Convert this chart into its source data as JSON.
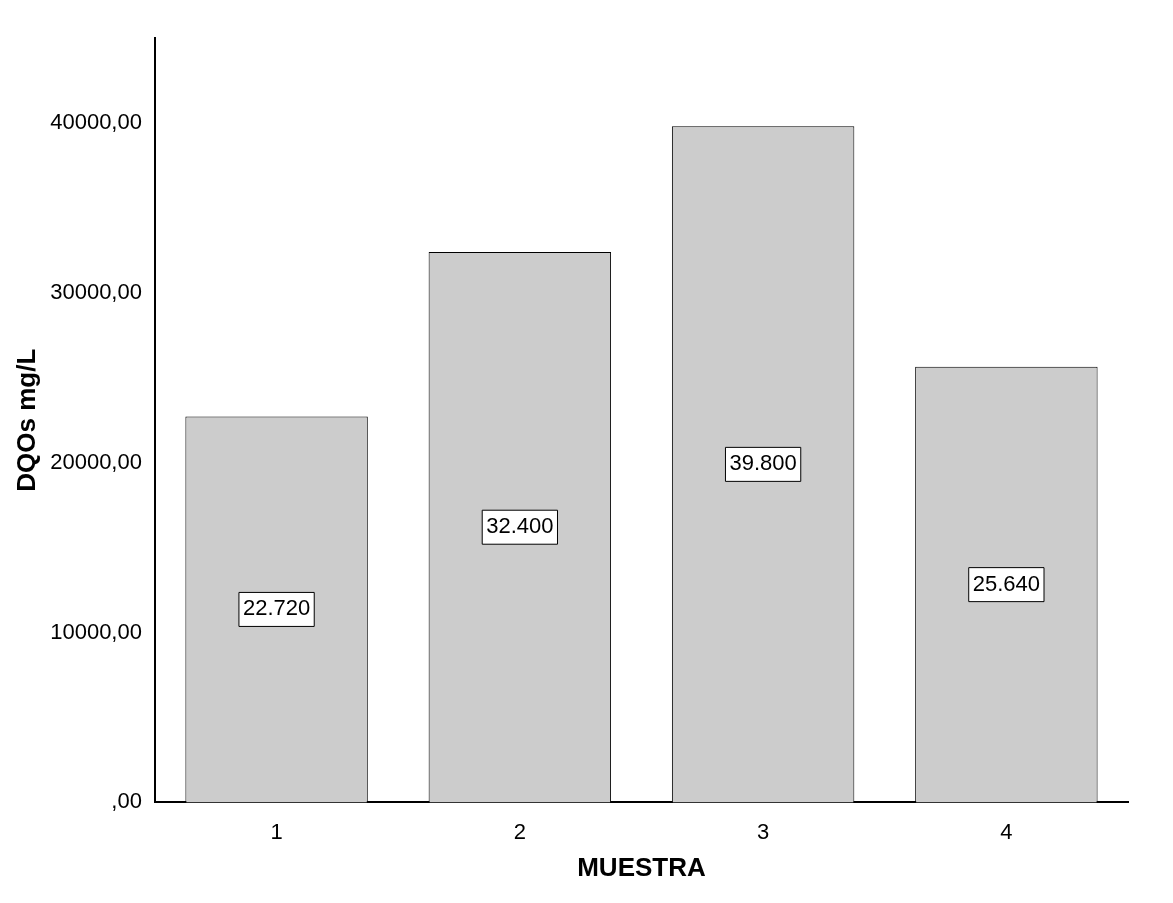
{
  "chart_data": {
    "type": "bar",
    "xlabel": "MUESTRA",
    "ylabel": "DQOs mg/L",
    "categories": [
      "1",
      "2",
      "3",
      "4"
    ],
    "values": [
      22720,
      32400,
      39800,
      25640
    ],
    "value_labels": [
      "22.720",
      "32.400",
      "39.800",
      "25.640"
    ],
    "color": "#cccccc",
    "ylim": [
      0,
      45000
    ],
    "yticks": [
      {
        "value": 0,
        "label": ",00"
      },
      {
        "value": 10000,
        "label": "10000,00"
      },
      {
        "value": 20000,
        "label": "20000,00"
      },
      {
        "value": 30000,
        "label": "30000,00"
      },
      {
        "value": 40000,
        "label": "40000,00"
      }
    ],
    "grid": false,
    "legend": false
  }
}
